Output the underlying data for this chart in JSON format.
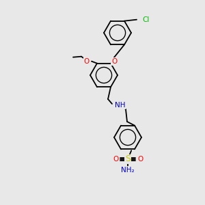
{
  "bg_color": "#e8e8e8",
  "bond_color": "#000000",
  "atom_colors": {
    "O": "#ff0000",
    "N": "#0000cd",
    "S": "#cccc00",
    "Cl": "#00bb00",
    "H": "#777777"
  },
  "figsize": [
    3.0,
    3.0
  ],
  "dpi": 100
}
